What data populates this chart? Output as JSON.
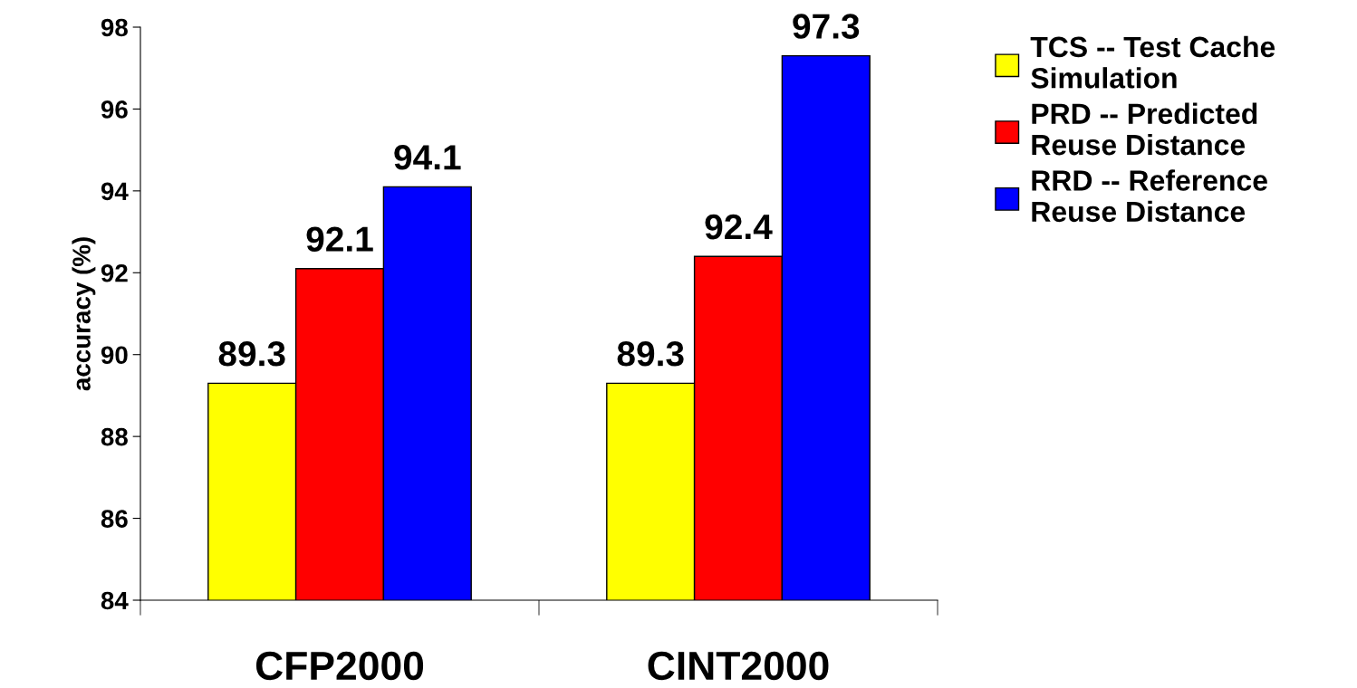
{
  "chart_data": {
    "type": "bar",
    "ylabel": "accuracy (%)",
    "categories": [
      "CFP2000",
      "CINT2000"
    ],
    "series": [
      {
        "name": "TCS -- Test Cache\nSimulation",
        "color": "#ffff00",
        "values": [
          89.3,
          89.3
        ]
      },
      {
        "name": "PRD -- Predicted\nReuse Distance",
        "color": "#ff0000",
        "values": [
          92.1,
          92.4
        ]
      },
      {
        "name": "RRD -- Reference\nReuse Distance",
        "color": "#0000ff",
        "values": [
          94.1,
          97.3
        ]
      }
    ],
    "ylim": [
      84,
      98
    ],
    "yticks": [
      84,
      86,
      88,
      90,
      92,
      94,
      96,
      98
    ],
    "data_labels": true,
    "grid": false,
    "legend": "right"
  }
}
